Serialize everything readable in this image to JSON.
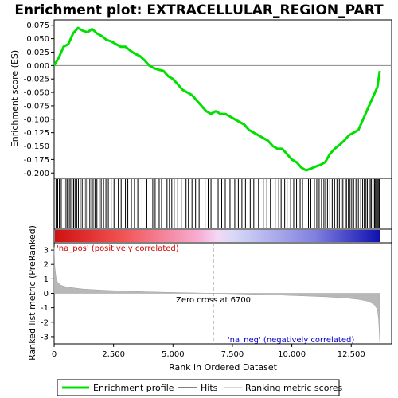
{
  "chart_data": {
    "title": "Enrichment plot: EXTRACELLULAR_REGION_PART",
    "type": "line",
    "es_panel": {
      "ylabel": "Enrichment score (ES)",
      "ylim": [
        -0.21,
        0.085
      ],
      "yticks": [
        "0.075",
        "0.050",
        "0.025",
        "0.000",
        "-0.025",
        "-0.050",
        "-0.075",
        "-0.100",
        "-0.125",
        "-0.150",
        "-0.175",
        "-0.200"
      ],
      "ytick_values": [
        0.075,
        0.05,
        0.025,
        0,
        -0.025,
        -0.05,
        -0.075,
        -0.1,
        -0.125,
        -0.15,
        -0.175,
        -0.2
      ],
      "series": [
        {
          "name": "Enrichment profile",
          "color": "#00e000",
          "x": [
            0,
            200,
            400,
            600,
            800,
            1000,
            1200,
            1400,
            1600,
            1800,
            2000,
            2200,
            2400,
            2600,
            2800,
            3000,
            3200,
            3400,
            3600,
            3800,
            4000,
            4200,
            4400,
            4600,
            4800,
            5000,
            5200,
            5400,
            5600,
            5800,
            6000,
            6200,
            6400,
            6600,
            6800,
            7000,
            7200,
            7400,
            7600,
            7800,
            8000,
            8200,
            8400,
            8600,
            8800,
            9000,
            9200,
            9400,
            9600,
            9800,
            10000,
            10200,
            10400,
            10600,
            10800,
            11000,
            11200,
            11400,
            11600,
            11800,
            12000,
            12200,
            12400,
            12600,
            12800,
            13000,
            13200,
            13400,
            13600,
            13700
          ],
          "y": [
            0.0,
            0.015,
            0.035,
            0.04,
            0.06,
            0.07,
            0.065,
            0.062,
            0.068,
            0.06,
            0.055,
            0.048,
            0.045,
            0.04,
            0.035,
            0.035,
            0.028,
            0.022,
            0.018,
            0.01,
            0.0,
            -0.005,
            -0.008,
            -0.01,
            -0.02,
            -0.025,
            -0.035,
            -0.045,
            -0.05,
            -0.055,
            -0.065,
            -0.075,
            -0.085,
            -0.09,
            -0.085,
            -0.09,
            -0.09,
            -0.095,
            -0.1,
            -0.105,
            -0.11,
            -0.12,
            -0.125,
            -0.13,
            -0.135,
            -0.14,
            -0.15,
            -0.155,
            -0.155,
            -0.165,
            -0.175,
            -0.18,
            -0.19,
            -0.195,
            -0.192,
            -0.188,
            -0.185,
            -0.18,
            -0.165,
            -0.155,
            -0.148,
            -0.14,
            -0.13,
            -0.125,
            -0.12,
            -0.1,
            -0.08,
            -0.06,
            -0.04,
            -0.01
          ]
        }
      ]
    },
    "hits_panel": {
      "series_name": "Hits",
      "hit_positions": [
        80,
        150,
        220,
        300,
        420,
        500,
        560,
        640,
        700,
        760,
        820,
        880,
        950,
        1020,
        1100,
        1180,
        1260,
        1340,
        1420,
        1500,
        1580,
        1640,
        1720,
        1800,
        1900,
        1980,
        2080,
        2180,
        2280,
        2400,
        2520,
        2700,
        2820,
        3000,
        3100,
        3250,
        3380,
        3520,
        3700,
        3900,
        4150,
        4250,
        4420,
        4520,
        4750,
        4850,
        4950,
        5050,
        5200,
        5350,
        5550,
        5650,
        5800,
        5950,
        6100,
        6350,
        6480,
        6600,
        6900,
        7050,
        7200,
        7400,
        7600,
        7750,
        7900,
        8050,
        8250,
        8400,
        8600,
        8800,
        8950,
        9100,
        9300,
        9450,
        9550,
        9700,
        9800,
        9950,
        10080,
        10200,
        10350,
        10450,
        10600,
        10700,
        10800,
        10950,
        11050,
        11150,
        11250,
        11350,
        11420,
        11500,
        11600,
        11700,
        11800,
        11900,
        12000,
        12080,
        12150,
        12250,
        12300,
        12380,
        12450,
        12520,
        12600,
        12700,
        12800,
        12900,
        12980,
        13050,
        13120,
        13180,
        13250,
        13300,
        13350,
        13420,
        13480,
        13520,
        13560,
        13600,
        13640,
        13680
      ]
    },
    "ranked_panel": {
      "ylabel": "Ranked list metric (PreRanked)",
      "ylim": [
        -3.5,
        3.5
      ],
      "yticks": [
        "3",
        "2",
        "1",
        "0",
        "-1",
        "-2",
        "-3"
      ],
      "ytick_values": [
        3,
        2,
        1,
        0,
        -1,
        -2,
        -3
      ],
      "series_name": "Ranking metric scores",
      "metric_x": [
        0,
        30,
        80,
        150,
        300,
        500,
        800,
        1200,
        2000,
        3000,
        4000,
        5000,
        6000,
        6700,
        7500,
        8500,
        9500,
        10500,
        11500,
        12300,
        12800,
        13200,
        13450,
        13600,
        13650,
        13700
      ],
      "metric_y": [
        3.2,
        1.8,
        1.1,
        0.75,
        0.55,
        0.45,
        0.38,
        0.3,
        0.22,
        0.15,
        0.1,
        0.06,
        0.03,
        0.0,
        -0.03,
        -0.07,
        -0.12,
        -0.18,
        -0.25,
        -0.33,
        -0.42,
        -0.55,
        -0.75,
        -1.1,
        -1.8,
        -3.4
      ],
      "positive_label": "'na_pos' (positively correlated)",
      "negative_label": "'na_neg' (negatively correlated)",
      "zero_cross_label": "Zero cross at 6700",
      "zero_cross": 6700
    },
    "x_axis": {
      "label": "Rank in Ordered Dataset",
      "xlim": [
        0,
        14200
      ],
      "ticks": [
        "0",
        "2,500",
        "5,000",
        "7,500",
        "10,000",
        "12,500"
      ],
      "tick_values": [
        0,
        2500,
        5000,
        7500,
        10000,
        12500
      ]
    },
    "legend": {
      "placement": "bottom",
      "items": [
        {
          "label": "Enrichment profile",
          "color": "#00e000"
        },
        {
          "label": "Hits",
          "color": "#000000"
        },
        {
          "label": "Ranking metric scores",
          "color": "#b0b0b0"
        }
      ]
    },
    "colors": {
      "pos": "#ff2020",
      "neg": "#2020d0",
      "positive_label": "#cc0000",
      "negative_label": "#0000cc"
    }
  }
}
